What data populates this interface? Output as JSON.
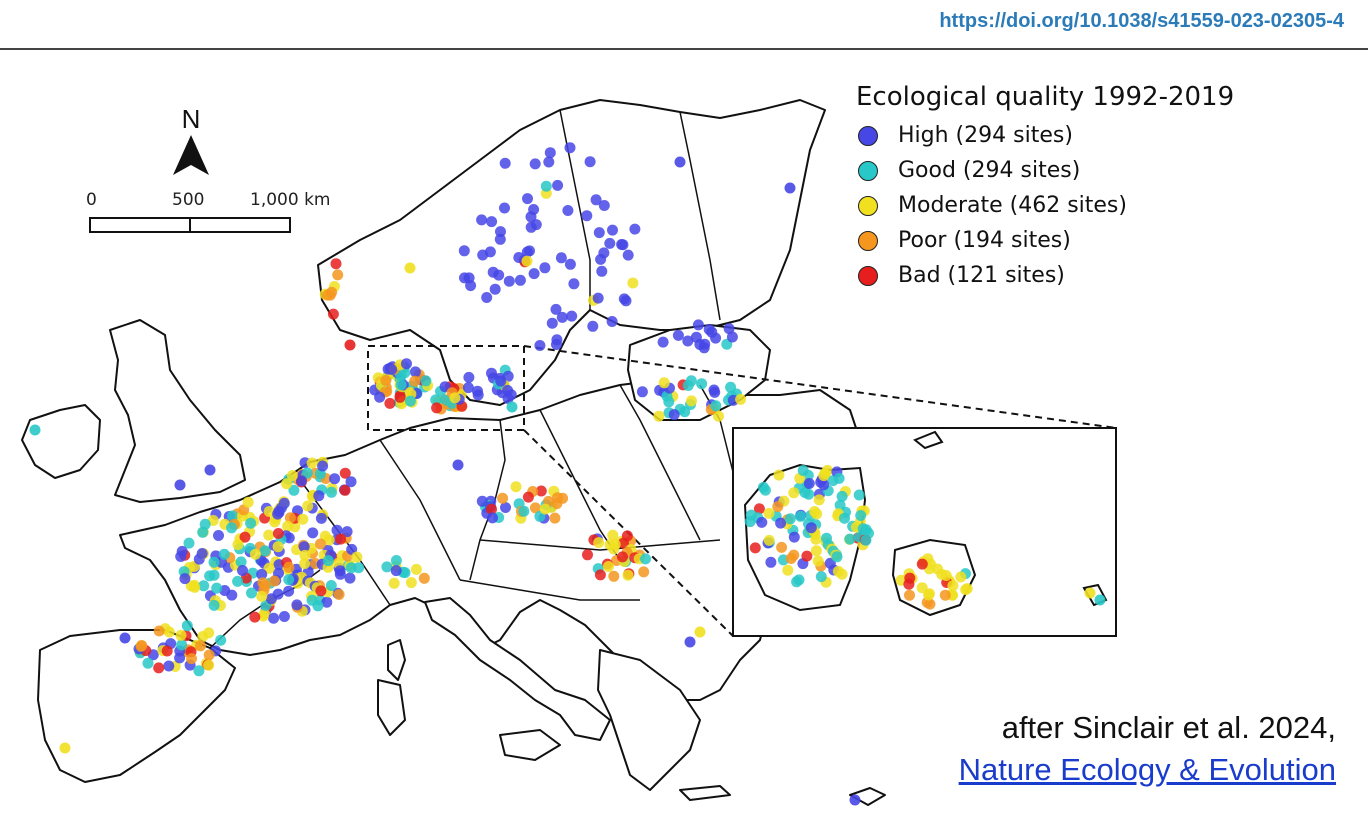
{
  "doi": "https://doi.org/10.1038/s41559-023-02305-4",
  "legend": {
    "title": "Ecological quality 1992-2019",
    "items": [
      {
        "label": "High (294 sites)",
        "color": "#4747e6"
      },
      {
        "label": "Good (294 sites)",
        "color": "#28c8c8"
      },
      {
        "label": "Moderate (462 sites)",
        "color": "#f0e020"
      },
      {
        "label": "Poor (194 sites)",
        "color": "#f5961e"
      },
      {
        "label": "Bad (121 sites)",
        "color": "#e61e1e"
      }
    ]
  },
  "north_label": "N",
  "scale": {
    "labels": [
      "0",
      "500",
      "1,000 km"
    ]
  },
  "attribution": {
    "text": "after Sinclair et al. 2024,",
    "link": "Nature Ecology & Evolution"
  },
  "status_colors": {
    "high": "#4747e6",
    "good": "#28c8c8",
    "moderate": "#f0e020",
    "poor": "#f5961e",
    "bad": "#e61e1e"
  }
}
